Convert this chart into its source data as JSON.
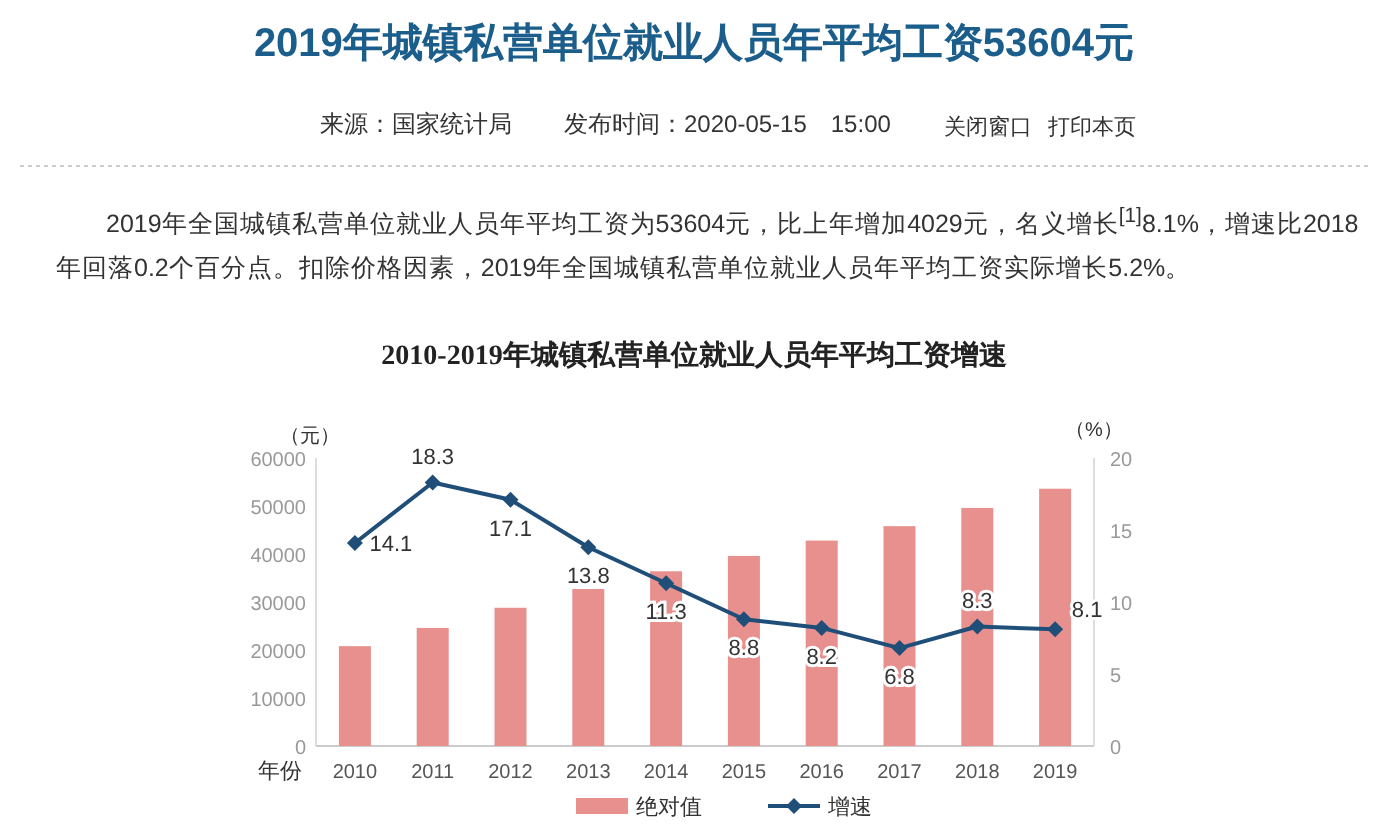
{
  "chart_data": {
    "type": "bar",
    "title": "2010-2019年城镇私营单位就业人员年平均工资增速",
    "subtitle": "2019年全国城镇私营单位就业人员年平均工资为53604元，比上年增加4029元，名义增长$^{[1]}$8.1%，增速比2018年回落0.2个百分点。扣除价格因素，2019年全国城镇私营单位就业人员年平均工资实际增长5.2%。",
    "annotations": [
      "2019年城镇私营单位就业人员年平均工资53604元",
      "来源：国家统计局",
      "发布时间：2020-05-15　15:00",
      "关闭窗口",
      "打印本页"
    ],
    "xlabel": "年份",
    "ylabel": "（元）",
    "y2label": "（%）",
    "categories": [
      "2010",
      "2011",
      "2012",
      "2013",
      "2014",
      "2015",
      "2016",
      "2017",
      "2018",
      "2019"
    ],
    "series": [
      {
        "name": "绝对值",
        "color": "#e8908e",
        "values": [
          20800,
          24600,
          28800,
          32700,
          36400,
          39600,
          42800,
          45800,
          49600,
          53600
        ]
      },
      {
        "name": "增速",
        "type": "line",
        "axis": "y2",
        "color": "#1f4e79",
        "marker": "diamond",
        "values": [
          14.1,
          18.3,
          17.1,
          13.8,
          11.3,
          8.8,
          8.2,
          6.8,
          8.3,
          8.1
        ],
        "value_labels": [
          "14.1",
          "18.3",
          "17.1",
          "13.8",
          "11.3",
          "8.8",
          "8.2",
          "6.8",
          "8.3",
          "8.1"
        ]
      }
    ],
    "ylim": [
      0,
      60000
    ],
    "yticks": [
      0,
      10000,
      20000,
      30000,
      40000,
      50000,
      60000
    ],
    "y2lim": [
      0,
      20
    ],
    "y2ticks": [
      0,
      5,
      10,
      15,
      20
    ],
    "legend": "bottom"
  }
}
